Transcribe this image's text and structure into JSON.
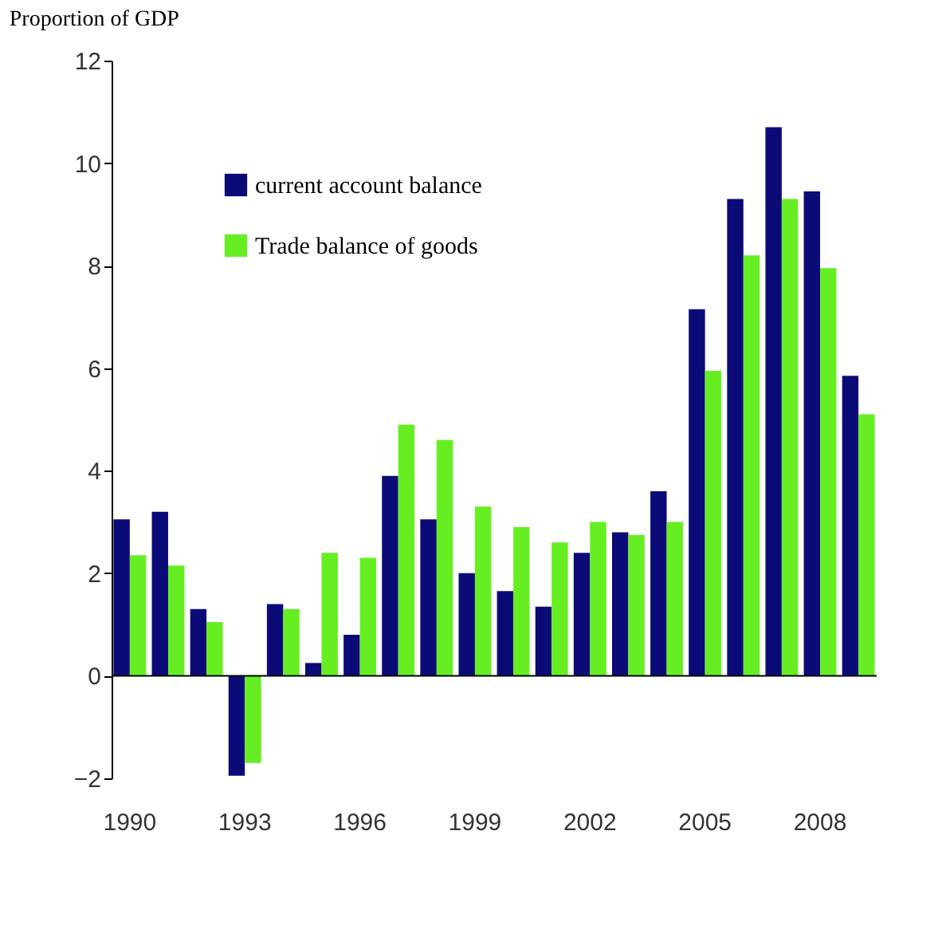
{
  "chart_data": {
    "type": "bar",
    "title": "Proportion of GDP",
    "categories": [
      "1990",
      null,
      null,
      "1993",
      null,
      null,
      "1996",
      null,
      null,
      "1999",
      null,
      null,
      "2002",
      null,
      null,
      "2005",
      null,
      null,
      "2008",
      null
    ],
    "series": [
      {
        "name": "current account balance",
        "color": "#0b0b78",
        "values": [
          3.05,
          3.2,
          1.3,
          -1.95,
          1.4,
          0.25,
          0.8,
          3.9,
          3.05,
          2.0,
          1.65,
          1.35,
          2.4,
          2.8,
          3.6,
          7.15,
          9.3,
          10.7,
          9.45,
          5.85
        ]
      },
      {
        "name": "Trade balance of goods",
        "color": "#66ee22",
        "values": [
          2.35,
          2.15,
          1.05,
          -1.7,
          1.3,
          2.4,
          2.3,
          4.9,
          4.6,
          3.3,
          2.9,
          2.6,
          3.0,
          2.75,
          3.0,
          5.95,
          8.2,
          9.3,
          7.95,
          5.1
        ]
      }
    ],
    "ylim": [
      -2,
      12
    ],
    "yticks": [
      -2,
      0,
      2,
      4,
      6,
      8,
      10,
      12
    ],
    "grid": false,
    "ref_lines": [
      {
        "axis": "y",
        "value": 0,
        "color": "#000000"
      }
    ],
    "legend": "top left"
  }
}
